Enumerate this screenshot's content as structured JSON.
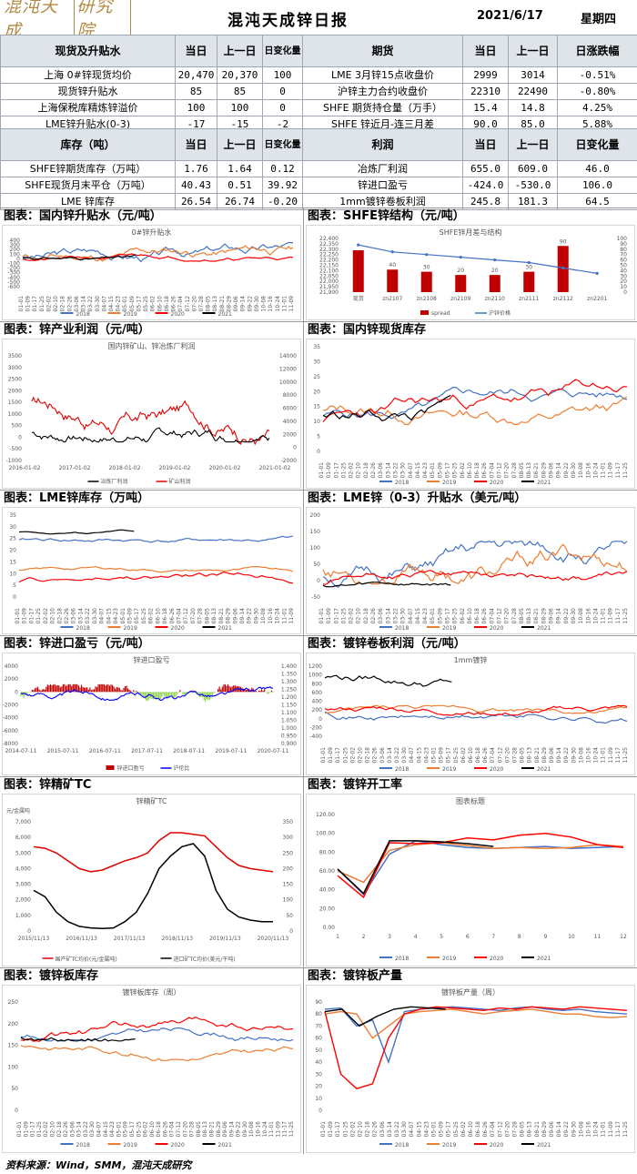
{
  "header": {
    "logo_text": "混沌天成",
    "logo_box": "研究院",
    "title": "混沌天成锌日报",
    "date": "2021/6/17",
    "weekday": "星期四"
  },
  "table1": {
    "headers": [
      "现货及升贴水",
      "当日",
      "上一日",
      "日变化量",
      "期货",
      "当日",
      "上一日",
      "日涨跌幅"
    ],
    "rows": [
      [
        "上海 0#锌现货均价",
        "20,470",
        "20,370",
        "100",
        "LME 3月锌15点收盘价",
        "2999",
        "3014",
        "-0.51%"
      ],
      [
        "现货锌升贴水",
        "85",
        "85",
        "0",
        "沪锌主力合约收盘价",
        "22310",
        "22490",
        "-0.80%"
      ],
      [
        "上海保税库精炼锌溢价",
        "100",
        "100",
        "0",
        "SHFE 期货持仓量（万手）",
        "15.4",
        "14.8",
        "4.25%"
      ],
      [
        "LME锌升贴水(0-3)",
        "-17",
        "-15",
        "-2",
        "SHFE 锌近月-连三月差",
        "90.0",
        "85.0",
        "5.88%"
      ]
    ]
  },
  "table2": {
    "headers": [
      "库存（吨）",
      "当日",
      "上一日",
      "日变化量",
      "利润",
      "当日",
      "上一日",
      "日变化量"
    ],
    "rows": [
      [
        "SHFE锌期货库存（万吨）",
        "1.76",
        "1.64",
        "0.12",
        "冶炼厂利润",
        "655.0",
        "609.0",
        "46.0"
      ],
      [
        "SHFE现货月末平仓（万吨）",
        "40.43",
        "0.51",
        "39.92",
        "锌进口盈亏",
        "-424.0",
        "-530.0",
        "106.0"
      ],
      [
        "LME 锌库存",
        "26.54",
        "26.74",
        "-0.20",
        "1mm镀锌卷板利润",
        "245.8",
        "181.3",
        "64.5"
      ]
    ]
  },
  "sections": [
    {
      "title": "图表：国内锌升贴水（元/吨）",
      "chart_title": "0#锌升贴水"
    },
    {
      "title": "图表：SHFE锌结构（元/吨）",
      "chart_title": "SHFE锌月差与结构"
    },
    {
      "title": "图表：锌产业利润（元/吨）",
      "chart_title": "国内锌矿山、锌冶炼厂利润"
    },
    {
      "title": "图表：国内锌现货库存",
      "chart_title": ""
    },
    {
      "title": "图表：LME锌库存（万吨）",
      "chart_title": ""
    },
    {
      "title": "图表：LME锌（0-3）升贴水（美元/吨）",
      "chart_title": ""
    },
    {
      "title": "图表：锌进口盈亏（元/吨）",
      "chart_title": "锌进口盈亏"
    },
    {
      "title": "图表：镀锌卷板利润（元/吨）",
      "chart_title": "1mm镀锌"
    },
    {
      "title": "图表：锌精矿TC",
      "chart_title": "锌精矿TC"
    },
    {
      "title": "图表：镀锌开工率",
      "chart_title": "图表标题"
    },
    {
      "title": "图表：镀锌板库存",
      "chart_title": "镀锌板库存（周）"
    },
    {
      "title": "图表：镀锌板产量",
      "chart_title": "镀锌板产量（周）"
    }
  ],
  "legend_years": [
    "2018",
    "2019",
    "2020",
    "2021"
  ],
  "colors": {
    "y2018": "#4472c4",
    "y2019": "#ed7d31",
    "y2020": "#ff0000",
    "y2021": "#000000",
    "header_bg": "#dfe4ea",
    "dark_red": "#c00000",
    "green": "#92d050",
    "blue": "#0000ff"
  },
  "chart_data": [
    {
      "type": "line",
      "title": "0#锌升贴水",
      "yticks": [
        "400",
        "300",
        "200",
        "100",
        "0",
        "-100",
        "-200",
        "-300",
        "-400",
        "-500",
        "-600"
      ],
      "series": [
        {
          "name": "2018"
        },
        {
          "name": "2019"
        },
        {
          "name": "2020"
        },
        {
          "name": "2021"
        }
      ]
    },
    {
      "type": "bar",
      "title": "SHFE锌月差与结构",
      "categories": [
        "现货",
        "zn2107",
        "zn2108",
        "zn2109",
        "zn2110",
        "zn2111",
        "zn2112",
        "zn2201"
      ],
      "series": [
        {
          "name": "spread",
          "values": [
            22290,
            22110,
            22090,
            22060,
            22060,
            22090,
            22330,
            null
          ]
        },
        {
          "name": "沪锌价格",
          "values": [
            88,
            75,
            70,
            65,
            60,
            55,
            45,
            35
          ]
        }
      ],
      "data_labels": [
        "40",
        "30",
        "20",
        "20",
        "30",
        "90"
      ],
      "yticks_left": [
        "22,400",
        "22,350",
        "22,300",
        "22,250",
        "22,200",
        "22,150",
        "22,100",
        "22,050",
        "22,000",
        "21,950",
        "21,900"
      ],
      "yticks_right": [
        "100",
        "90",
        "80",
        "70",
        "60",
        "50",
        "40",
        "30",
        "20",
        "10",
        "0"
      ]
    },
    {
      "type": "line",
      "title": "国内锌矿山、锌冶炼厂利润",
      "xticks": [
        "2016-01-02",
        "2017-01-02",
        "2018-01-02",
        "2019-01-02",
        "2020-01-02",
        "2021-01-02"
      ],
      "yticks_left": [
        "3500",
        "3000",
        "2500",
        "2000",
        "1500",
        "1000",
        "500",
        "0",
        "-500",
        "-1000"
      ],
      "yticks_right": [
        "14000",
        "12000",
        "10000",
        "8000",
        "6000",
        "4000",
        "2000",
        "0",
        "-2000"
      ],
      "series": [
        {
          "name": "冶炼厂利润"
        },
        {
          "name": "矿山利润"
        }
      ]
    },
    {
      "type": "line",
      "yticks": [
        "35",
        "30",
        "25",
        "20",
        "15",
        "10",
        "5",
        "0"
      ]
    },
    {
      "type": "line",
      "yticks": [
        "35",
        "30",
        "25",
        "20",
        "15",
        "10",
        "5",
        "0"
      ]
    },
    {
      "type": "line",
      "yticks": [
        "200",
        "150",
        "100",
        "50",
        "0",
        "-50"
      ]
    },
    {
      "type": "area",
      "title": "锌进口盈亏",
      "xticks": [
        "2014-07-11",
        "2015-07-11",
        "2016-07-11",
        "2017-07-11",
        "2018-07-11",
        "2019-07-11",
        "2020-07-11"
      ],
      "yticks_left": [
        "4000",
        "2000",
        "0",
        "-2000",
        "-4000",
        "-6000",
        "-8000"
      ],
      "yticks_right": [
        "1.400",
        "1.350",
        "1.300",
        "1.250",
        "1.200",
        "1.150",
        "1.100",
        "1.050",
        "1.000",
        "0.950",
        "0.900"
      ],
      "series": [
        {
          "name": "锌进口盈亏"
        },
        {
          "name": "沪伦比"
        }
      ]
    },
    {
      "type": "line",
      "title": "1mm镀锌",
      "yticks": [
        "1200",
        "1000",
        "800",
        "600",
        "400",
        "200",
        "0",
        "-200",
        "-400"
      ]
    },
    {
      "type": "line",
      "title": "锌精矿TC",
      "ylabel": "元/金属吨",
      "xticks": [
        "2015/11/13",
        "2016/11/13",
        "2017/11/13",
        "2018/11/13",
        "2019/11/13",
        "2020/11/13"
      ],
      "yticks_left": [
        "7,000",
        "6,000",
        "5,000",
        "4,000",
        "3,000",
        "2,000",
        "1,000",
        "0"
      ],
      "yticks_right": [
        "350",
        "300",
        "250",
        "200",
        "150",
        "100",
        "50",
        "0"
      ],
      "series": [
        {
          "name": "国产矿TC均价(元/金属吨)"
        },
        {
          "name": "进口矿TC均价(美元/干吨)"
        }
      ]
    },
    {
      "type": "line",
      "title": "图表标题",
      "categories": [
        "1",
        "2",
        "3",
        "4",
        "5",
        "6",
        "7",
        "8",
        "9",
        "10",
        "11",
        "12"
      ],
      "yticks": [
        "120.00",
        "100.00",
        "80.00",
        "60.00",
        "40.00",
        "20.00",
        "0.00"
      ]
    },
    {
      "type": "line",
      "title": "镀锌板库存（周）",
      "yticks": [
        "250",
        "200",
        "150",
        "100",
        "50",
        "0"
      ]
    },
    {
      "type": "line",
      "title": "镀锌板产量（周）",
      "yticks": [
        "90",
        "80",
        "70",
        "60",
        "50",
        "40",
        "30",
        "20",
        "10",
        "0"
      ]
    }
  ],
  "footer": {
    "source": "资料来源：Wind，SMM，混沌天成研究"
  }
}
